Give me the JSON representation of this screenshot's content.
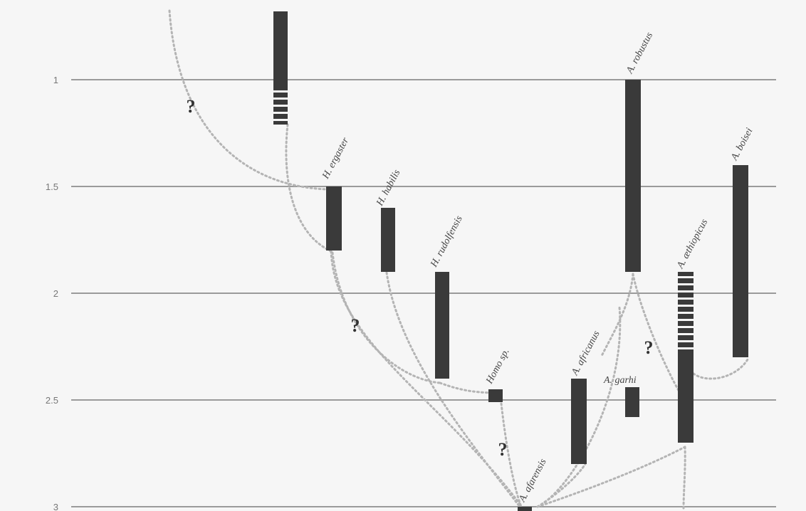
{
  "chart_data": {
    "type": "range-timeline",
    "y_axis": {
      "ticks": [
        {
          "value": 1,
          "label": "1"
        },
        {
          "value": 1.5,
          "label": "1.5"
        },
        {
          "value": 2,
          "label": "2"
        },
        {
          "value": 2.5,
          "label": "2.5"
        },
        {
          "value": 3,
          "label": "3"
        }
      ],
      "ylim": [
        0.68,
        3.02
      ],
      "direction": "down"
    },
    "species": [
      {
        "id": "homo-top",
        "label": "",
        "start": 1.21,
        "end": 0.68,
        "uncertain_start": 1.21,
        "uncertain_end": 1.03
      },
      {
        "id": "h-ergaster",
        "label": "H. ergaster",
        "start": 1.8,
        "end": 1.5
      },
      {
        "id": "h-habilis",
        "label": "H. habilis",
        "start": 1.9,
        "end": 1.6
      },
      {
        "id": "h-rudolfensis",
        "label": "H. rudolfensis",
        "start": 2.4,
        "end": 1.9
      },
      {
        "id": "homo-sp",
        "label": "Homo sp.",
        "start": 2.51,
        "end": 2.45
      },
      {
        "id": "a-afarensis",
        "label": "A. afarensis",
        "start": 3.02,
        "end": 3.0
      },
      {
        "id": "a-africanus",
        "label": "A. africanus",
        "start": 2.8,
        "end": 2.4
      },
      {
        "id": "a-garhi",
        "label": "A. garhi",
        "start": 2.58,
        "end": 2.44
      },
      {
        "id": "a-robustus",
        "label": "A. robustus",
        "start": 1.9,
        "end": 1.0
      },
      {
        "id": "a-aethiopicus",
        "label": "A. æthiopicus",
        "start": 2.7,
        "end": 1.9,
        "uncertain_start": 2.28,
        "uncertain_end": 1.9
      },
      {
        "id": "a-boisei",
        "label": "A. boisei",
        "start": 2.3,
        "end": 1.4
      }
    ],
    "uncertain_links": [
      "homo-top to h-ergaster",
      "h-ergaster to homo-sp",
      "homo-sp to a-afarensis",
      "a-robustus to a-aethiopicus"
    ],
    "question_mark": "?"
  }
}
